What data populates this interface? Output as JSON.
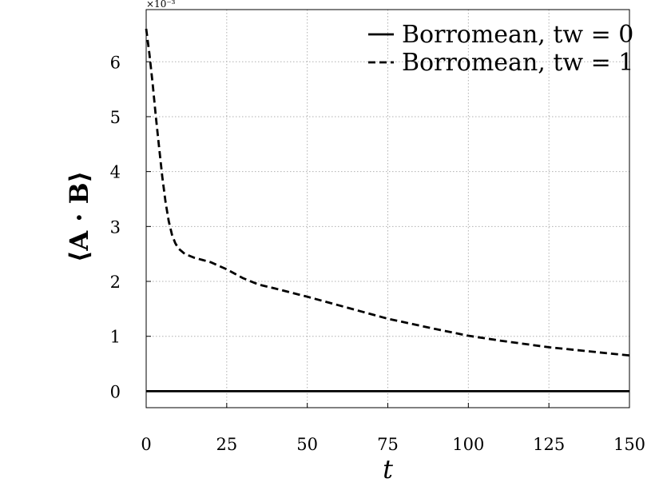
{
  "chart_data": {
    "type": "line",
    "title": "",
    "xlabel": "t",
    "ylabel": "⟨A · B⟩",
    "y_multiplier": "×10⁻³",
    "xlim": [
      0,
      150
    ],
    "ylim": [
      -0.3,
      6.95
    ],
    "xticks": [
      0,
      25,
      50,
      75,
      100,
      125,
      150
    ],
    "yticks": [
      0,
      1,
      2,
      3,
      4,
      5,
      6
    ],
    "grid": true,
    "legend_position": "top-right",
    "series": [
      {
        "name": "Borromean, tw = 0",
        "style": "solid",
        "color": "#000000",
        "x": [
          0,
          150
        ],
        "y": [
          0,
          0
        ]
      },
      {
        "name": "Borromean, tw = 1",
        "style": "dashed",
        "color": "#000000",
        "x": [
          0,
          1,
          2,
          3,
          4,
          5,
          6,
          7,
          8,
          9,
          10,
          12,
          15,
          20,
          25,
          30,
          35,
          40,
          50,
          60,
          75,
          90,
          100,
          110,
          125,
          140,
          150
        ],
        "y": [
          6.6,
          6.15,
          5.6,
          5.0,
          4.45,
          3.9,
          3.45,
          3.1,
          2.85,
          2.7,
          2.6,
          2.5,
          2.43,
          2.35,
          2.22,
          2.06,
          1.94,
          1.87,
          1.72,
          1.56,
          1.32,
          1.13,
          1.01,
          0.92,
          0.8,
          0.71,
          0.65
        ]
      }
    ]
  }
}
